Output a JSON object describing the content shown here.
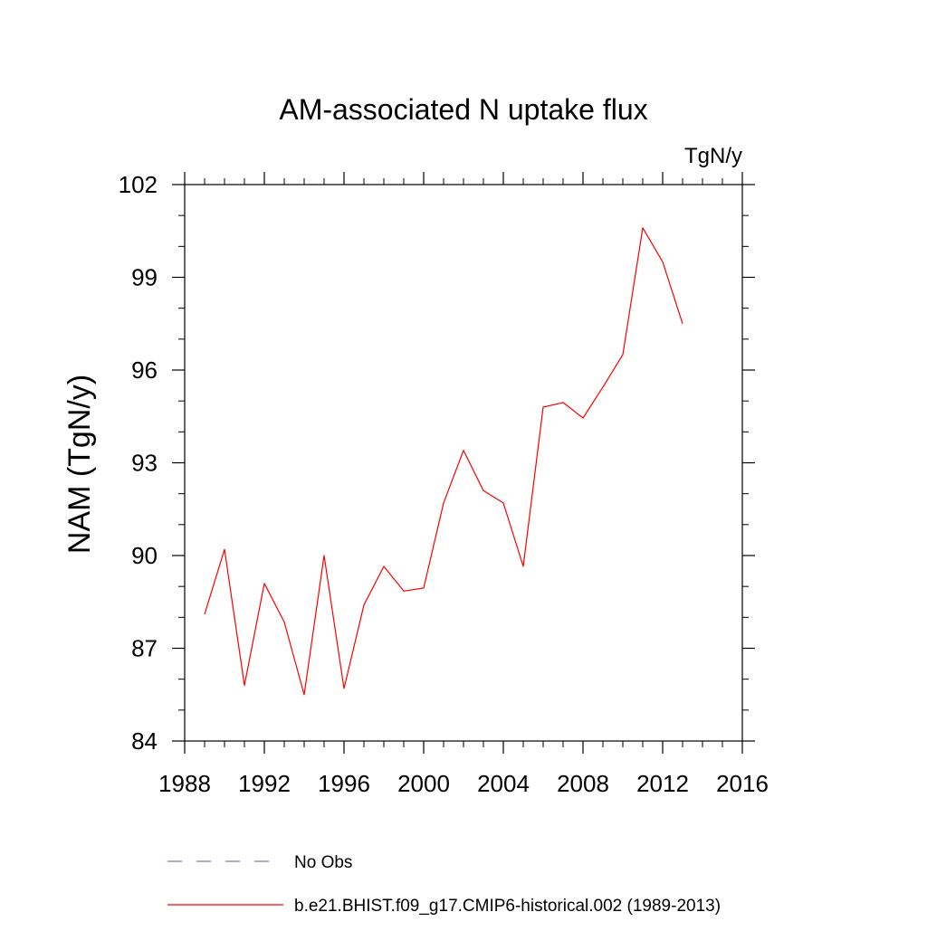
{
  "chart_data": {
    "type": "line",
    "title": "AM-associated N uptake flux",
    "units_label": "TgN/y",
    "xlabel": "",
    "ylabel": "NAM  (TgN/y)",
    "xlim": [
      1988,
      2016
    ],
    "ylim": [
      84,
      102
    ],
    "x_ticks": [
      1988,
      1992,
      1996,
      2000,
      2004,
      2008,
      2012,
      2016
    ],
    "y_ticks": [
      84,
      87,
      90,
      93,
      96,
      99,
      102
    ],
    "x_minor_step": 1,
    "y_minor_step": 1,
    "grid": false,
    "legend_position": "bottom",
    "legend": [
      {
        "name": "No Obs",
        "style": "dashed",
        "color": "#7b7bc6"
      },
      {
        "name": "b.e21.BHIST.f09_g17.CMIP6-historical.002 (1989-2013)",
        "style": "solid",
        "color": "#ff0000"
      }
    ],
    "series": [
      {
        "name": "b.e21.BHIST.f09_g17.CMIP6-historical.002 (1989-2013)",
        "color": "#ff0000",
        "x": [
          1989,
          1990,
          1991,
          1992,
          1993,
          1994,
          1995,
          1996,
          1997,
          1998,
          1999,
          2000,
          2001,
          2002,
          2003,
          2004,
          2005,
          2006,
          2007,
          2008,
          2009,
          2010,
          2011,
          2012,
          2013
        ],
        "values": [
          88.1,
          90.2,
          85.8,
          89.1,
          87.85,
          85.5,
          90.0,
          85.7,
          88.4,
          89.65,
          88.85,
          88.95,
          91.7,
          93.4,
          92.1,
          91.7,
          89.65,
          94.8,
          94.95,
          94.45,
          95.45,
          96.5,
          100.6,
          99.5,
          97.5
        ]
      }
    ]
  }
}
